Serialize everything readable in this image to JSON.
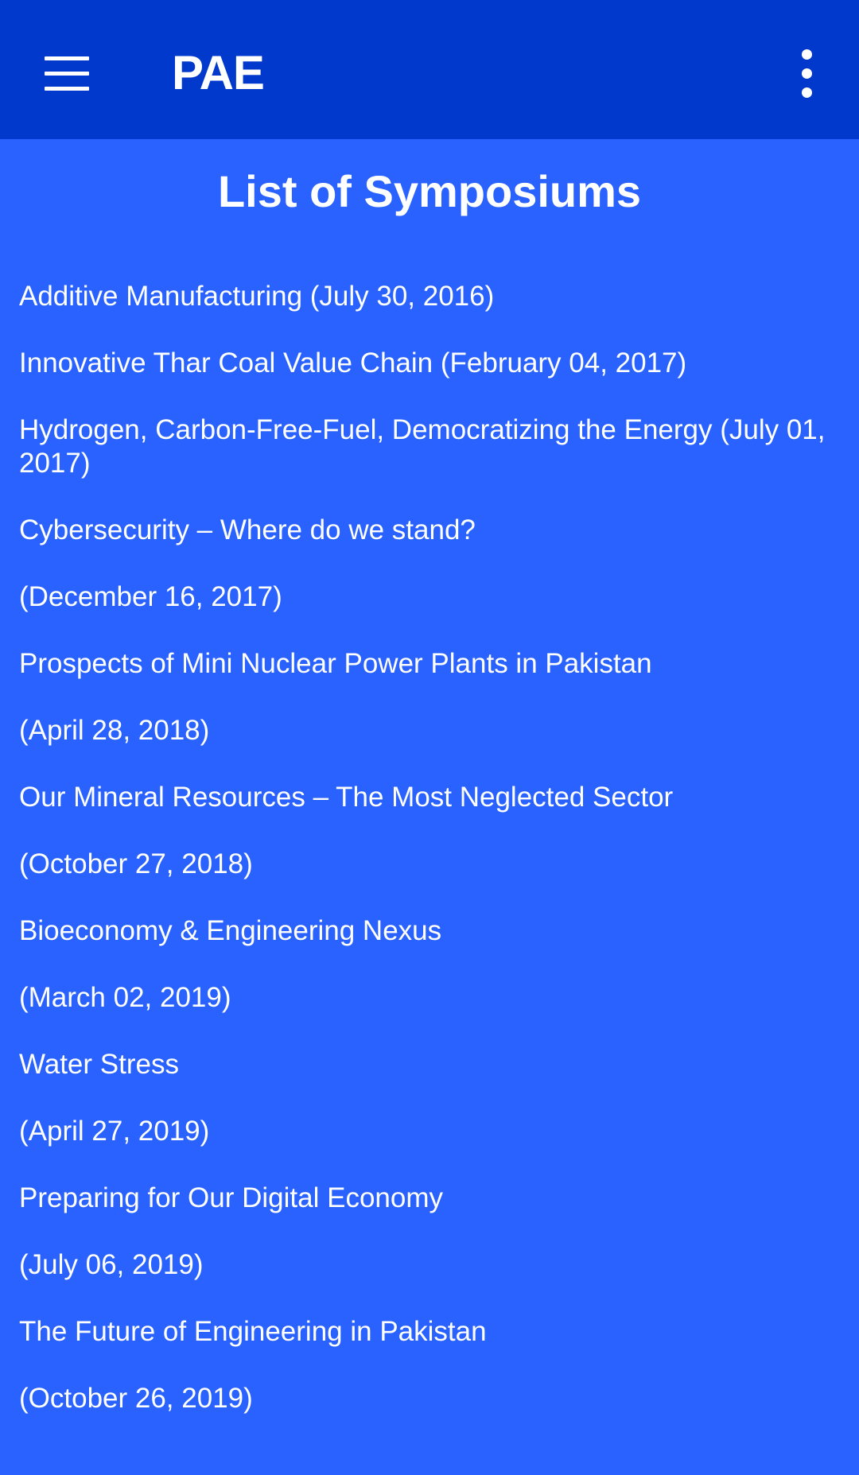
{
  "app_bar": {
    "title": "PAE",
    "menu_icon": "hamburger-menu-icon",
    "overflow_icon": "more-vertical-icon",
    "background_color": "#0039cb"
  },
  "page": {
    "heading": "List of Symposiums",
    "background_color": "#2962ff"
  },
  "symposiums": [
    "Additive Manufacturing (July 30, 2016)",
    "Innovative Thar Coal Value Chain (February 04, 2017)",
    "Hydrogen, Carbon-Free-Fuel, Democratizing the Energy (July 01, 2017)",
    "Cybersecurity – Where do we stand?",
    "(December 16, 2017)",
    "Prospects of Mini Nuclear Power Plants in Pakistan",
    "(April 28, 2018)",
    "Our Mineral Resources – The Most Neglected Sector",
    "(October 27, 2018)",
    "Bioeconomy & Engineering Nexus",
    "(March 02, 2019)",
    "Water Stress",
    "(April 27, 2019)",
    "Preparing for Our Digital Economy",
    "(July 06, 2019)",
    "The Future of Engineering in Pakistan",
    "(October 26, 2019)"
  ]
}
